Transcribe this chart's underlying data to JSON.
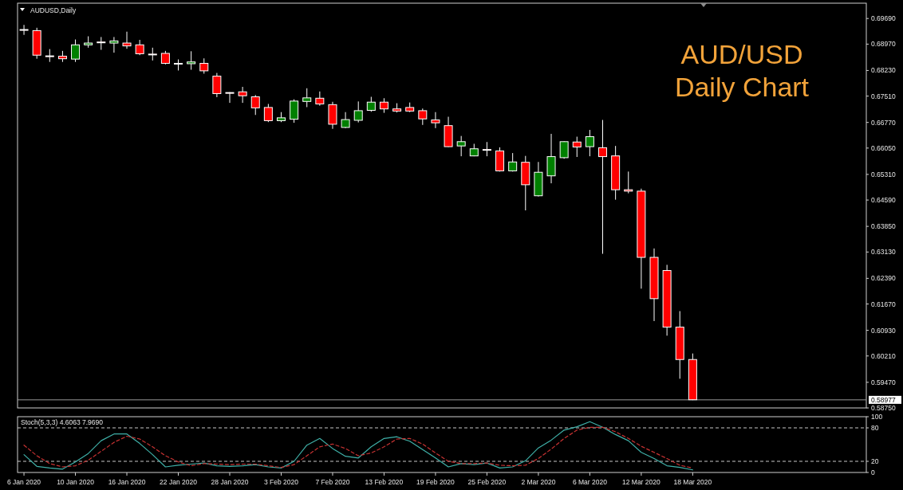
{
  "chart_data": [
    {
      "type": "candlestick",
      "title": "AUD/USD",
      "subtitle": "Daily Chart",
      "annotations": [
        "AUDUSD,Daily"
      ],
      "categories": [
        null,
        null,
        null,
        null,
        null,
        null,
        null,
        null,
        null,
        null,
        null,
        null,
        null,
        null,
        null,
        null,
        null,
        null,
        null,
        null,
        null,
        null,
        null,
        null,
        null,
        null,
        null,
        null,
        null,
        null,
        null,
        null,
        null,
        null,
        null,
        null,
        null,
        null,
        null,
        null,
        null,
        null,
        null,
        null,
        null,
        null,
        null,
        null,
        null,
        null,
        null,
        null,
        null,
        null,
        null,
        null,
        null,
        null,
        null,
        null,
        null,
        null,
        null,
        null,
        null,
        null
      ],
      "ohlc": [
        [
          0.6938,
          0.6951,
          0.6923,
          0.6937
        ],
        [
          0.6935,
          0.6943,
          0.6856,
          0.6866
        ],
        [
          0.6864,
          0.6883,
          0.6847,
          0.6863
        ],
        [
          0.6863,
          0.6878,
          0.6847,
          0.6856
        ],
        [
          0.6855,
          0.691,
          0.6847,
          0.6895
        ],
        [
          0.6895,
          0.6919,
          0.6887,
          0.69
        ],
        [
          0.6903,
          0.6917,
          0.6881,
          0.6902
        ],
        [
          0.69,
          0.6917,
          0.6873,
          0.6906
        ],
        [
          0.69,
          0.6932,
          0.6884,
          0.6892
        ],
        [
          0.6895,
          0.6909,
          0.6866,
          0.687
        ],
        [
          0.6869,
          0.6887,
          0.6851,
          0.6868
        ],
        [
          0.6871,
          0.6878,
          0.684,
          0.6843
        ],
        [
          0.6843,
          0.6854,
          0.6823,
          0.6842
        ],
        [
          0.6842,
          0.6877,
          0.6825,
          0.6847
        ],
        [
          0.6843,
          0.6857,
          0.6814,
          0.6822
        ],
        [
          0.6807,
          0.6816,
          0.6748,
          0.6758
        ],
        [
          0.6761,
          0.6762,
          0.6732,
          0.676
        ],
        [
          0.6763,
          0.6777,
          0.6732,
          0.6752
        ],
        [
          0.6749,
          0.6754,
          0.6698,
          0.6718
        ],
        [
          0.6719,
          0.6729,
          0.6678,
          0.6682
        ],
        [
          0.6682,
          0.6706,
          0.6678,
          0.669
        ],
        [
          0.6686,
          0.6742,
          0.6676,
          0.6737
        ],
        [
          0.6736,
          0.6773,
          0.672,
          0.6746
        ],
        [
          0.6745,
          0.6764,
          0.6724,
          0.6729
        ],
        [
          0.6727,
          0.6735,
          0.6659,
          0.6672
        ],
        [
          0.6663,
          0.6706,
          0.6661,
          0.6685
        ],
        [
          0.6683,
          0.6736,
          0.6677,
          0.671
        ],
        [
          0.6711,
          0.6749,
          0.6707,
          0.6734
        ],
        [
          0.6734,
          0.6745,
          0.6704,
          0.6715
        ],
        [
          0.6715,
          0.6731,
          0.6705,
          0.6709
        ],
        [
          0.6719,
          0.6733,
          0.6706,
          0.6709
        ],
        [
          0.671,
          0.6716,
          0.667,
          0.6687
        ],
        [
          0.6684,
          0.6706,
          0.6661,
          0.6676
        ],
        [
          0.6668,
          0.6693,
          0.6608,
          0.6609
        ],
        [
          0.6611,
          0.6639,
          0.6582,
          0.6623
        ],
        [
          0.6583,
          0.6617,
          0.6582,
          0.6603
        ],
        [
          0.6601,
          0.6622,
          0.6582,
          0.66
        ],
        [
          0.6597,
          0.6607,
          0.6539,
          0.6541
        ],
        [
          0.6541,
          0.6591,
          0.6539,
          0.6566
        ],
        [
          0.6565,
          0.6583,
          0.643,
          0.6502
        ],
        [
          0.6471,
          0.6566,
          0.6469,
          0.6537
        ],
        [
          0.6527,
          0.6645,
          0.6506,
          0.6581
        ],
        [
          0.6578,
          0.6624,
          0.6575,
          0.6623
        ],
        [
          0.6622,
          0.6637,
          0.658,
          0.6608
        ],
        [
          0.6609,
          0.6656,
          0.6582,
          0.6637
        ],
        [
          0.6606,
          0.6684,
          0.6308,
          0.6581
        ],
        [
          0.6583,
          0.6611,
          0.646,
          0.6488
        ],
        [
          0.6488,
          0.6539,
          0.6478,
          0.6484
        ],
        [
          0.6484,
          0.6491,
          0.621,
          0.6298
        ],
        [
          0.6298,
          0.6323,
          0.6119,
          0.6182
        ],
        [
          0.6261,
          0.6277,
          0.6078,
          0.6102
        ],
        [
          0.6102,
          0.6147,
          0.5957,
          0.6011
        ],
        [
          0.6011,
          0.6028,
          0.5897,
          0.5898
        ],
        null,
        null,
        null,
        null,
        null,
        null,
        null,
        null,
        null,
        null,
        null,
        null,
        null
      ],
      "colors": [
        "#ff0000",
        "#ff0000",
        "#ff0000",
        "#ff0000",
        "#008000",
        "#008000",
        "#ff0000",
        "#008000",
        "#ff0000",
        "#ff0000",
        "#ff0000",
        "#ff0000",
        "#ff0000",
        "#008000",
        "#ff0000",
        "#ff0000",
        "#ff0000",
        "#ff0000",
        "#ff0000",
        "#ff0000",
        "#008000",
        "#008000",
        "#008000",
        "#ff0000",
        "#ff0000",
        "#008000",
        "#008000",
        "#008000",
        "#ff0000",
        "#ff0000",
        "#ff0000",
        "#ff0000",
        "#ff0000",
        "#ff0000",
        "#008000",
        "#008000",
        "#ff0000",
        "#ff0000",
        "#008000",
        "#ff0000",
        "#008000",
        "#008000",
        "#008000",
        "#ff0000",
        "#008000",
        "#ff0000",
        "#ff0000",
        "#ff0000",
        "#ff0000",
        "#ff0000",
        "#ff0000",
        "#ff0000",
        "#ff0000",
        null,
        null,
        null,
        null,
        null,
        null,
        null,
        null,
        null,
        null,
        null,
        null,
        null
      ],
      "ylim": [
        0.5875,
        0.7012
      ],
      "yticks": [
        {
          "value": 0.6969,
          "label": "0.69690"
        },
        {
          "value": 0.6897,
          "label": "0.68970"
        },
        {
          "value": 0.6823,
          "label": "0.68230"
        },
        {
          "value": 0.6751,
          "label": "0.67510"
        },
        {
          "value": 0.6677,
          "label": "0.66770"
        },
        {
          "value": 0.6605,
          "label": "0.66050"
        },
        {
          "value": 0.6531,
          "label": "0.65310"
        },
        {
          "value": 0.6459,
          "label": "0.64590"
        },
        {
          "value": 0.6385,
          "label": "0.63850"
        },
        {
          "value": 0.6313,
          "label": "0.63130"
        },
        {
          "value": 0.6239,
          "label": "0.62390"
        },
        {
          "value": 0.6167,
          "label": "0.61670"
        },
        {
          "value": 0.6093,
          "label": "0.60930"
        },
        {
          "value": 0.6021,
          "label": "0.60210"
        },
        {
          "value": 0.5947,
          "label": "0.59470"
        },
        {
          "value": 0.5875,
          "label": "0.58750"
        }
      ],
      "ref_lines": [
        {
          "axis": "y",
          "value": 0.58977,
          "label": "0.58977",
          "color": "#9a9a9a"
        }
      ]
    },
    {
      "type": "line",
      "title": "Stoch(5,3,3) 4.6063 7.9690",
      "categories": [
        "6 Jan 2020",
        null,
        null,
        null,
        "10 Jan 2020",
        null,
        null,
        null,
        "16 Jan 2020",
        null,
        null,
        null,
        "22 Jan 2020",
        null,
        null,
        null,
        "28 Jan 2020",
        null,
        null,
        null,
        "3 Feb 2020",
        null,
        null,
        null,
        "7 Feb 2020",
        null,
        null,
        null,
        "13 Feb 2020",
        null,
        null,
        null,
        "19 Feb 2020",
        null,
        null,
        null,
        "25 Feb 2020",
        null,
        null,
        null,
        "2 Mar 2020",
        null,
        null,
        null,
        "6 Mar 2020",
        null,
        null,
        null,
        "12 Mar 2020",
        null,
        null,
        null,
        "18 Mar 2020",
        null,
        null,
        null,
        null,
        null,
        null,
        null,
        null,
        null,
        null,
        null,
        null,
        null
      ],
      "series": [
        {
          "color": "#3fb0a8",
          "values": [
            32,
            11,
            8,
            6,
            19,
            34,
            57,
            69,
            69,
            52,
            32,
            10,
            13,
            15,
            17,
            12,
            11,
            12,
            14,
            10,
            8,
            20,
            49,
            61,
            43,
            29,
            26,
            46,
            61,
            64,
            56,
            41,
            26,
            10,
            16,
            14,
            17,
            8,
            10,
            21,
            44,
            58,
            76,
            82,
            91,
            81,
            68,
            57,
            36,
            25,
            12,
            9,
            4.6063,
            null,
            null,
            null,
            null,
            null,
            null,
            null,
            null,
            null,
            null,
            null,
            null,
            null
          ]
        },
        {
          "color": "#c83232",
          "line_style": "dashed",
          "values": [
            49,
            30,
            16,
            10,
            12,
            22,
            38,
            54,
            65,
            60,
            46,
            30,
            19,
            12,
            16,
            15,
            14,
            15,
            15,
            12,
            9,
            14,
            30,
            46,
            51,
            43,
            30,
            35,
            46,
            60,
            61,
            51,
            35,
            20,
            16,
            16,
            17,
            13,
            12,
            13,
            25,
            42,
            61,
            76,
            81,
            81,
            73,
            61,
            47,
            36,
            25,
            13,
            7.969,
            null,
            null,
            null,
            null,
            null,
            null,
            null,
            null,
            null,
            null,
            null,
            null,
            null
          ]
        }
      ],
      "ylim": [
        0,
        100
      ],
      "yticks": [
        0,
        20,
        80,
        100
      ],
      "ref_lines": [
        {
          "axis": "y",
          "value": 80,
          "color": "#c8c8c8",
          "line_style": "dashed"
        },
        {
          "axis": "y",
          "value": 20,
          "color": "#c8c8c8",
          "line_style": "dashed"
        }
      ]
    }
  ]
}
